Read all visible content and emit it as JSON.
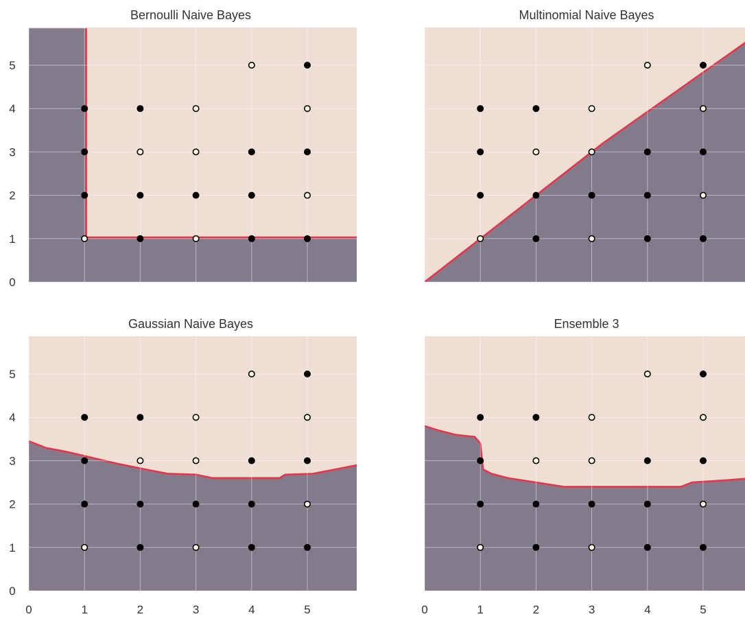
{
  "colors": {
    "region_class0": "#837a8b",
    "region_class1": "#f0ddd4",
    "boundary": "#e8344a",
    "point_dark": "#000000",
    "point_light": "#fffde8",
    "grid": "#ffffff",
    "tick_text": "#333333"
  },
  "chart_data": [
    {
      "type": "scatter",
      "title": "Bernoulli Naive Bayes",
      "xlabel": "",
      "ylabel": "",
      "xlim": [
        0,
        5.9
      ],
      "ylim": [
        0,
        5.85
      ],
      "xticks": [
        "0",
        "1",
        "2",
        "3",
        "4",
        "5"
      ],
      "yticks": [
        "0",
        "1",
        "2",
        "3",
        "4",
        "5"
      ],
      "show_xticks": false,
      "show_yticks": true,
      "grid": true,
      "decision_boundary": [
        [
          1.03,
          5.85
        ],
        [
          1.03,
          1.03
        ],
        [
          5.9,
          1.03
        ]
      ],
      "lower_region_vertices": [
        [
          0,
          0
        ],
        [
          0,
          5.85
        ],
        [
          1.03,
          5.85
        ],
        [
          1.03,
          1.03
        ],
        [
          5.9,
          1.03
        ],
        [
          5.9,
          0
        ]
      ],
      "points": [
        {
          "x": 1,
          "y": 1,
          "label": 1
        },
        {
          "x": 2,
          "y": 1,
          "label": 0
        },
        {
          "x": 3,
          "y": 1,
          "label": 1
        },
        {
          "x": 4,
          "y": 1,
          "label": 0
        },
        {
          "x": 5,
          "y": 1,
          "label": 0
        },
        {
          "x": 1,
          "y": 2,
          "label": 0
        },
        {
          "x": 2,
          "y": 2,
          "label": 0
        },
        {
          "x": 3,
          "y": 2,
          "label": 0
        },
        {
          "x": 4,
          "y": 2,
          "label": 0
        },
        {
          "x": 5,
          "y": 2,
          "label": 1
        },
        {
          "x": 1,
          "y": 3,
          "label": 0
        },
        {
          "x": 2,
          "y": 3,
          "label": 1
        },
        {
          "x": 3,
          "y": 3,
          "label": 1
        },
        {
          "x": 4,
          "y": 3,
          "label": 0
        },
        {
          "x": 5,
          "y": 3,
          "label": 0
        },
        {
          "x": 1,
          "y": 4,
          "label": 0
        },
        {
          "x": 2,
          "y": 4,
          "label": 0
        },
        {
          "x": 3,
          "y": 4,
          "label": 1
        },
        {
          "x": 5,
          "y": 4,
          "label": 1
        },
        {
          "x": 4,
          "y": 5,
          "label": 1
        },
        {
          "x": 5,
          "y": 5,
          "label": 0
        }
      ]
    },
    {
      "type": "scatter",
      "title": "Multinomial Naive Bayes",
      "xlabel": "",
      "ylabel": "",
      "xlim": [
        0,
        5.9
      ],
      "ylim": [
        0,
        5.85
      ],
      "xticks": [
        "0",
        "1",
        "2",
        "3",
        "4",
        "5"
      ],
      "yticks": [
        "0",
        "1",
        "2",
        "3",
        "4",
        "5"
      ],
      "show_xticks": false,
      "show_yticks": false,
      "grid": true,
      "decision_boundary": [
        [
          0,
          0
        ],
        [
          3,
          3
        ],
        [
          3.2,
          3.2
        ],
        [
          5.9,
          5.65
        ]
      ],
      "lower_region_vertices": [
        [
          0,
          0
        ],
        [
          3,
          3
        ],
        [
          3.2,
          3.2
        ],
        [
          5.9,
          5.65
        ],
        [
          5.9,
          0
        ]
      ],
      "points": [
        {
          "x": 1,
          "y": 1,
          "label": 1
        },
        {
          "x": 2,
          "y": 1,
          "label": 0
        },
        {
          "x": 3,
          "y": 1,
          "label": 1
        },
        {
          "x": 4,
          "y": 1,
          "label": 0
        },
        {
          "x": 5,
          "y": 1,
          "label": 0
        },
        {
          "x": 1,
          "y": 2,
          "label": 0
        },
        {
          "x": 2,
          "y": 2,
          "label": 0
        },
        {
          "x": 3,
          "y": 2,
          "label": 0
        },
        {
          "x": 4,
          "y": 2,
          "label": 0
        },
        {
          "x": 5,
          "y": 2,
          "label": 1
        },
        {
          "x": 1,
          "y": 3,
          "label": 0
        },
        {
          "x": 2,
          "y": 3,
          "label": 1
        },
        {
          "x": 3,
          "y": 3,
          "label": 1
        },
        {
          "x": 4,
          "y": 3,
          "label": 0
        },
        {
          "x": 5,
          "y": 3,
          "label": 0
        },
        {
          "x": 1,
          "y": 4,
          "label": 0
        },
        {
          "x": 2,
          "y": 4,
          "label": 0
        },
        {
          "x": 3,
          "y": 4,
          "label": 1
        },
        {
          "x": 5,
          "y": 4,
          "label": 1
        },
        {
          "x": 4,
          "y": 5,
          "label": 1
        },
        {
          "x": 5,
          "y": 5,
          "label": 0
        }
      ]
    },
    {
      "type": "scatter",
      "title": "Gaussian Naive Bayes",
      "xlabel": "",
      "ylabel": "",
      "xlim": [
        0,
        5.9
      ],
      "ylim": [
        0,
        5.85
      ],
      "xticks": [
        "0",
        "1",
        "2",
        "3",
        "4",
        "5"
      ],
      "yticks": [
        "0",
        "1",
        "2",
        "3",
        "4",
        "5"
      ],
      "show_xticks": true,
      "show_yticks": true,
      "grid": true,
      "decision_boundary": [
        [
          0,
          3.45
        ],
        [
          0.3,
          3.3
        ],
        [
          0.7,
          3.2
        ],
        [
          1.2,
          3.05
        ],
        [
          1.6,
          2.93
        ],
        [
          2.1,
          2.8
        ],
        [
          2.5,
          2.7
        ],
        [
          3.0,
          2.68
        ],
        [
          3.3,
          2.6
        ],
        [
          4.0,
          2.6
        ],
        [
          4.5,
          2.6
        ],
        [
          4.6,
          2.68
        ],
        [
          5.1,
          2.7
        ],
        [
          5.5,
          2.8
        ],
        [
          5.9,
          2.9
        ]
      ],
      "lower_region_vertices": [
        [
          0,
          0
        ],
        [
          0,
          3.45
        ],
        [
          0.3,
          3.3
        ],
        [
          0.7,
          3.2
        ],
        [
          1.2,
          3.05
        ],
        [
          1.6,
          2.93
        ],
        [
          2.1,
          2.8
        ],
        [
          2.5,
          2.7
        ],
        [
          3.0,
          2.68
        ],
        [
          3.3,
          2.6
        ],
        [
          4.0,
          2.6
        ],
        [
          4.5,
          2.6
        ],
        [
          4.6,
          2.68
        ],
        [
          5.1,
          2.7
        ],
        [
          5.5,
          2.8
        ],
        [
          5.9,
          2.9
        ],
        [
          5.9,
          0
        ]
      ],
      "points": [
        {
          "x": 1,
          "y": 1,
          "label": 1
        },
        {
          "x": 2,
          "y": 1,
          "label": 0
        },
        {
          "x": 3,
          "y": 1,
          "label": 1
        },
        {
          "x": 4,
          "y": 1,
          "label": 0
        },
        {
          "x": 5,
          "y": 1,
          "label": 0
        },
        {
          "x": 1,
          "y": 2,
          "label": 0
        },
        {
          "x": 2,
          "y": 2,
          "label": 0
        },
        {
          "x": 3,
          "y": 2,
          "label": 0
        },
        {
          "x": 4,
          "y": 2,
          "label": 0
        },
        {
          "x": 5,
          "y": 2,
          "label": 1
        },
        {
          "x": 1,
          "y": 3,
          "label": 0
        },
        {
          "x": 2,
          "y": 3,
          "label": 1
        },
        {
          "x": 3,
          "y": 3,
          "label": 1
        },
        {
          "x": 4,
          "y": 3,
          "label": 0
        },
        {
          "x": 5,
          "y": 3,
          "label": 0
        },
        {
          "x": 1,
          "y": 4,
          "label": 0
        },
        {
          "x": 2,
          "y": 4,
          "label": 0
        },
        {
          "x": 3,
          "y": 4,
          "label": 1
        },
        {
          "x": 5,
          "y": 4,
          "label": 1
        },
        {
          "x": 4,
          "y": 5,
          "label": 1
        },
        {
          "x": 5,
          "y": 5,
          "label": 0
        }
      ]
    },
    {
      "type": "scatter",
      "title": "Ensemble 3",
      "xlabel": "",
      "ylabel": "",
      "xlim": [
        0,
        5.9
      ],
      "ylim": [
        0,
        5.85
      ],
      "xticks": [
        "0",
        "1",
        "2",
        "3",
        "4",
        "5"
      ],
      "yticks": [
        "0",
        "1",
        "2",
        "3",
        "4",
        "5"
      ],
      "show_xticks": true,
      "show_yticks": false,
      "grid": true,
      "decision_boundary": [
        [
          0,
          3.8
        ],
        [
          0.25,
          3.7
        ],
        [
          0.55,
          3.6
        ],
        [
          0.9,
          3.55
        ],
        [
          1.0,
          3.4
        ],
        [
          1.05,
          2.8
        ],
        [
          1.2,
          2.7
        ],
        [
          1.5,
          2.6
        ],
        [
          2.0,
          2.5
        ],
        [
          2.5,
          2.4
        ],
        [
          3.5,
          2.4
        ],
        [
          4.6,
          2.4
        ],
        [
          4.8,
          2.5
        ],
        [
          5.4,
          2.55
        ],
        [
          5.9,
          2.6
        ]
      ],
      "lower_region_vertices": [
        [
          0,
          0
        ],
        [
          0,
          3.8
        ],
        [
          0.25,
          3.7
        ],
        [
          0.55,
          3.6
        ],
        [
          0.9,
          3.55
        ],
        [
          1.0,
          3.4
        ],
        [
          1.05,
          2.8
        ],
        [
          1.2,
          2.7
        ],
        [
          1.5,
          2.6
        ],
        [
          2.0,
          2.5
        ],
        [
          2.5,
          2.4
        ],
        [
          3.5,
          2.4
        ],
        [
          4.6,
          2.4
        ],
        [
          4.8,
          2.5
        ],
        [
          5.4,
          2.55
        ],
        [
          5.9,
          2.6
        ],
        [
          5.9,
          0
        ]
      ],
      "points": [
        {
          "x": 1,
          "y": 1,
          "label": 1
        },
        {
          "x": 2,
          "y": 1,
          "label": 0
        },
        {
          "x": 3,
          "y": 1,
          "label": 1
        },
        {
          "x": 4,
          "y": 1,
          "label": 0
        },
        {
          "x": 5,
          "y": 1,
          "label": 0
        },
        {
          "x": 1,
          "y": 2,
          "label": 0
        },
        {
          "x": 2,
          "y": 2,
          "label": 0
        },
        {
          "x": 3,
          "y": 2,
          "label": 0
        },
        {
          "x": 4,
          "y": 2,
          "label": 0
        },
        {
          "x": 5,
          "y": 2,
          "label": 1
        },
        {
          "x": 1,
          "y": 3,
          "label": 0
        },
        {
          "x": 2,
          "y": 3,
          "label": 1
        },
        {
          "x": 3,
          "y": 3,
          "label": 1
        },
        {
          "x": 4,
          "y": 3,
          "label": 0
        },
        {
          "x": 5,
          "y": 3,
          "label": 0
        },
        {
          "x": 1,
          "y": 4,
          "label": 0
        },
        {
          "x": 2,
          "y": 4,
          "label": 0
        },
        {
          "x": 3,
          "y": 4,
          "label": 1
        },
        {
          "x": 5,
          "y": 4,
          "label": 1
        },
        {
          "x": 4,
          "y": 5,
          "label": 1
        },
        {
          "x": 5,
          "y": 5,
          "label": 0
        }
      ]
    }
  ]
}
